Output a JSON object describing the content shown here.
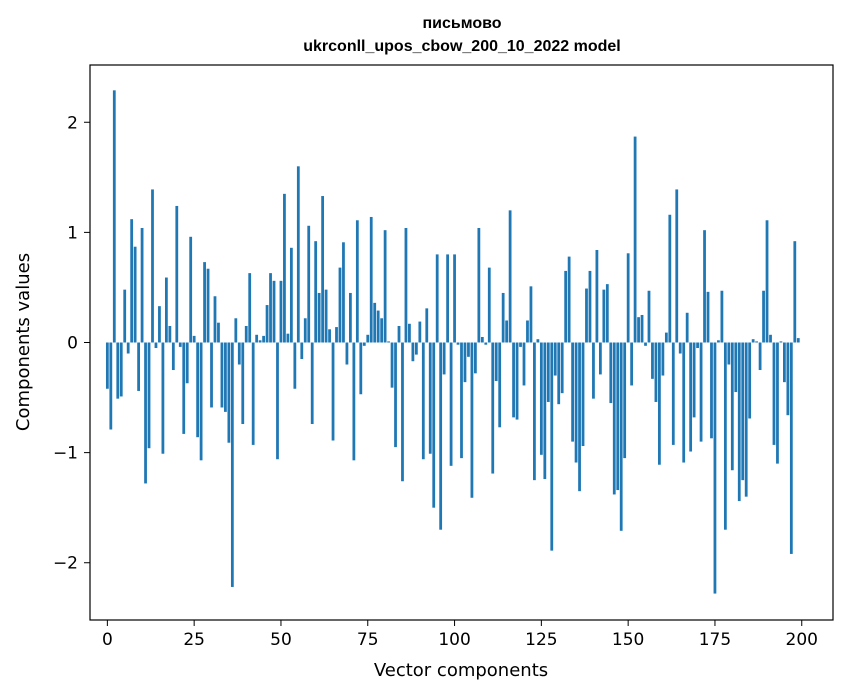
{
  "chart_data": {
    "type": "bar",
    "title_line1": "письмово",
    "title_line2": "ukrconll_upos_cbow_200_10_2022 model",
    "xlabel": "Vector components",
    "ylabel": "Components values",
    "xlim": [
      -5,
      209
    ],
    "ylim": [
      -2.52,
      2.52
    ],
    "x_ticks": [
      0,
      25,
      50,
      75,
      100,
      125,
      150,
      175,
      200
    ],
    "x_tick_labels": [
      "0",
      "25",
      "50",
      "75",
      "100",
      "125",
      "150",
      "175",
      "200"
    ],
    "y_ticks": [
      -2,
      -1,
      0,
      1,
      2
    ],
    "y_tick_labels": [
      "−2",
      "−1",
      "0",
      "1",
      "2"
    ],
    "bar_color": "#1f77b4",
    "grid": false,
    "x": [
      0,
      1,
      2,
      3,
      4,
      5,
      6,
      7,
      8,
      9,
      10,
      11,
      12,
      13,
      14,
      15,
      16,
      17,
      18,
      19,
      20,
      21,
      22,
      23,
      24,
      25,
      26,
      27,
      28,
      29,
      30,
      31,
      32,
      33,
      34,
      35,
      36,
      37,
      38,
      39,
      40,
      41,
      42,
      43,
      44,
      45,
      46,
      47,
      48,
      49,
      50,
      51,
      52,
      53,
      54,
      55,
      56,
      57,
      58,
      59,
      60,
      61,
      62,
      63,
      64,
      65,
      66,
      67,
      68,
      69,
      70,
      71,
      72,
      73,
      74,
      75,
      76,
      77,
      78,
      79,
      80,
      81,
      82,
      83,
      84,
      85,
      86,
      87,
      88,
      89,
      90,
      91,
      92,
      93,
      94,
      95,
      96,
      97,
      98,
      99,
      100,
      101,
      102,
      103,
      104,
      105,
      106,
      107,
      108,
      109,
      110,
      111,
      112,
      113,
      114,
      115,
      116,
      117,
      118,
      119,
      120,
      121,
      122,
      123,
      124,
      125,
      126,
      127,
      128,
      129,
      130,
      131,
      132,
      133,
      134,
      135,
      136,
      137,
      138,
      139,
      140,
      141,
      142,
      143,
      144,
      145,
      146,
      147,
      148,
      149,
      150,
      151,
      152,
      153,
      154,
      155,
      156,
      157,
      158,
      159,
      160,
      161,
      162,
      163,
      164,
      165,
      166,
      167,
      168,
      169,
      170,
      171,
      172,
      173,
      174,
      175,
      176,
      177,
      178,
      179,
      180,
      181,
      182,
      183,
      184,
      185,
      186,
      187,
      188,
      189,
      190,
      191,
      192,
      193,
      194,
      195,
      196,
      197,
      198,
      199
    ],
    "values": [
      -0.42,
      -0.79,
      2.29,
      -0.51,
      -0.49,
      0.48,
      -0.1,
      1.12,
      0.87,
      -0.44,
      1.04,
      -1.28,
      -0.96,
      1.39,
      -0.05,
      0.33,
      -1.01,
      0.59,
      0.15,
      -0.25,
      1.24,
      -0.04,
      -0.83,
      -0.37,
      0.96,
      0.06,
      -0.86,
      -1.07,
      0.73,
      0.67,
      -0.59,
      0.42,
      0.18,
      -0.59,
      -0.63,
      -0.91,
      -2.22,
      0.22,
      -0.2,
      -0.74,
      0.15,
      0.63,
      -0.93,
      0.07,
      0.02,
      0.06,
      0.34,
      0.63,
      0.56,
      -1.06,
      0.56,
      1.35,
      0.08,
      0.86,
      -0.42,
      1.6,
      -0.15,
      0.22,
      1.06,
      -0.74,
      0.92,
      0.45,
      1.33,
      0.48,
      0.12,
      -0.89,
      0.14,
      0.68,
      0.91,
      -0.2,
      0.45,
      -1.07,
      1.11,
      -0.47,
      -0.03,
      0.07,
      1.14,
      0.36,
      0.29,
      0.22,
      1.02,
      0.01,
      -0.41,
      -0.95,
      0.15,
      -1.26,
      1.04,
      0.17,
      -0.17,
      -0.11,
      0.19,
      -1.06,
      0.31,
      -1.01,
      -1.5,
      0.8,
      -1.7,
      -0.29,
      0.8,
      -1.12,
      0.8,
      -0.02,
      -1.05,
      -0.36,
      -0.13,
      -1.41,
      -0.28,
      1.04,
      0.05,
      -0.02,
      0.68,
      -1.19,
      -0.35,
      -0.77,
      0.45,
      0.2,
      1.2,
      -0.68,
      -0.7,
      -0.04,
      -0.39,
      0.2,
      0.51,
      -1.25,
      0.03,
      -1.02,
      -1.24,
      -0.54,
      -1.89,
      -0.3,
      -0.56,
      -0.46,
      0.65,
      0.78,
      -0.9,
      -1.09,
      -1.35,
      -0.94,
      0.49,
      0.65,
      -0.51,
      0.84,
      -0.29,
      0.48,
      0.53,
      -0.55,
      -1.38,
      -1.34,
      -1.71,
      -1.05,
      0.81,
      -0.39,
      1.87,
      0.23,
      0.25,
      -0.03,
      0.47,
      -0.33,
      -0.54,
      -1.11,
      -0.3,
      0.09,
      1.16,
      -0.93,
      1.39,
      -0.1,
      -1.09,
      0.27,
      -0.99,
      -0.68,
      -0.05,
      -0.9,
      1.02,
      0.46,
      -0.87,
      -2.28,
      0.02,
      0.47,
      -1.7,
      -0.2,
      -1.16,
      -0.45,
      -1.44,
      -1.25,
      -1.4,
      -0.69,
      0.03,
      0.01,
      -0.25,
      0.47,
      1.11,
      0.07,
      -0.93,
      -1.1,
      0.01,
      -0.36,
      -0.66,
      -1.92,
      0.92,
      0.04
    ]
  }
}
